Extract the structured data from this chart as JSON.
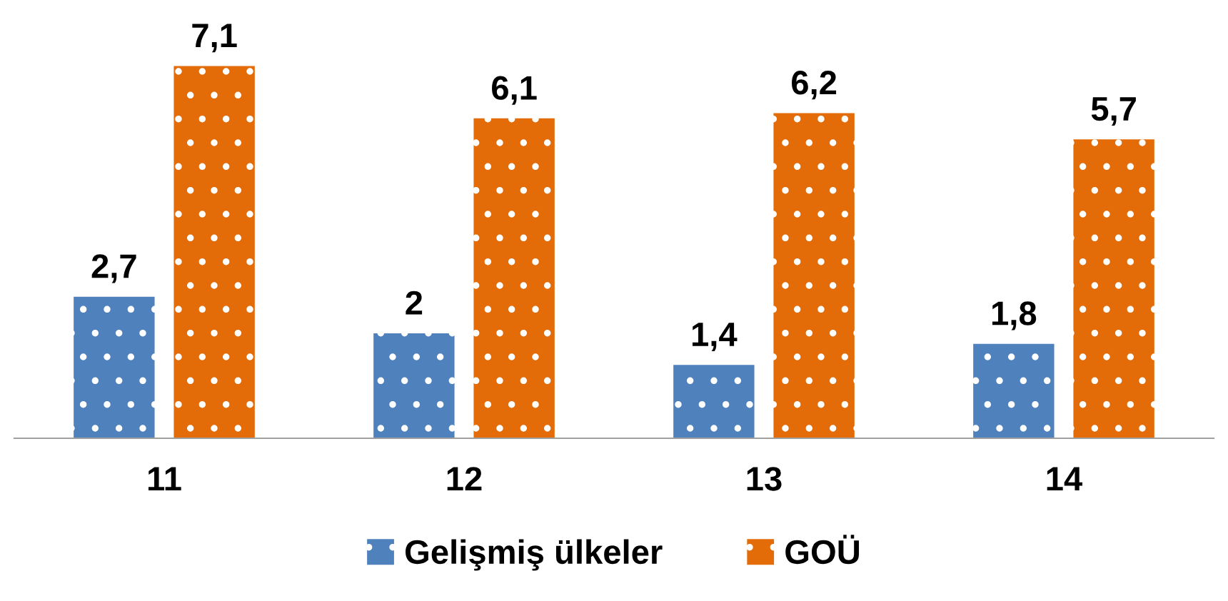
{
  "chart_data": {
    "type": "bar",
    "categories": [
      "11",
      "12",
      "13",
      "14"
    ],
    "series": [
      {
        "name": "Gelişmiş ülkeler",
        "color": "#4f81bd",
        "values": [
          2.7,
          2,
          1.4,
          1.8
        ],
        "value_labels": [
          "2,7",
          "2",
          "1,4",
          "1,8"
        ]
      },
      {
        "name": "GOÜ",
        "color": "#e36c09",
        "values": [
          7.1,
          6.1,
          6.2,
          5.7
        ],
        "value_labels": [
          "7,1",
          "6,1",
          "6,2",
          "5,7"
        ]
      }
    ],
    "legend": "bottom",
    "grid": false
  }
}
